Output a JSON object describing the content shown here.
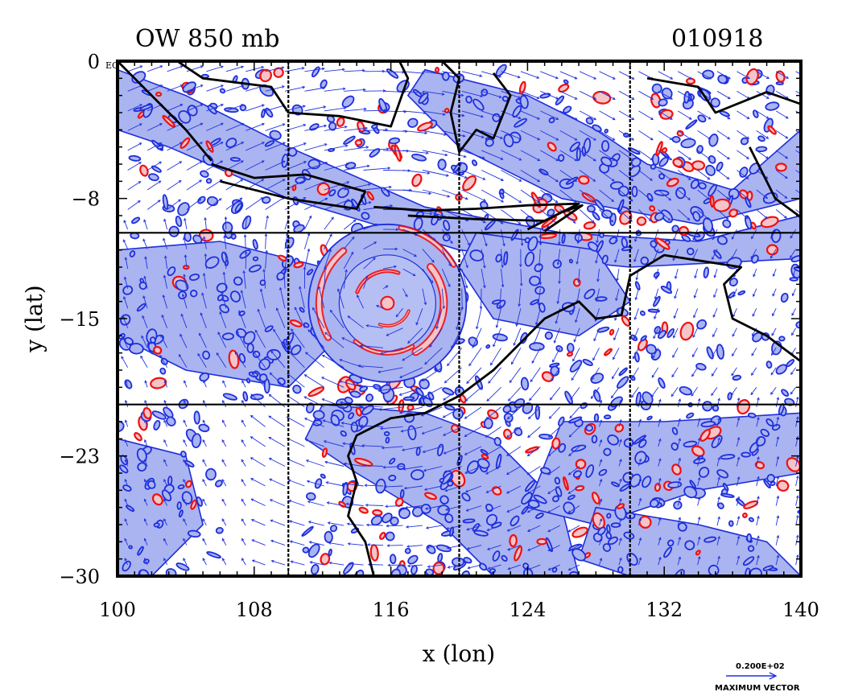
{
  "chart_data": {
    "type": "contour",
    "title": "OW 850 mb",
    "date_label": "010918",
    "xlabel": "x (lon)",
    "ylabel": "y (lat)",
    "xlim": [
      100,
      140
    ],
    "ylim": [
      -30,
      0
    ],
    "x_ticks": [
      100,
      108,
      116,
      124,
      132,
      140
    ],
    "y_ticks": [
      0,
      -8,
      -15,
      -23,
      -30
    ],
    "x_tick_labels": [
      "100",
      "108",
      "116",
      "124",
      "132",
      "140"
    ],
    "y_tick_labels": [
      "0",
      "−8",
      "−15",
      "−23",
      "−30"
    ],
    "equator_label": "EQ",
    "grid_lines": {
      "lon": [
        110,
        120,
        130
      ],
      "lat": [
        -10,
        -20
      ]
    },
    "grid": true,
    "vector_legend": {
      "value_label": "0.200E+02",
      "caption": "MAXIMUM VECTOR"
    },
    "cyclone_center": {
      "lon": 115.8,
      "lat": -14.1
    },
    "colors": {
      "negative_fill": "#aab4f0",
      "negative_line": "#1e2edc",
      "positive_fill": "#f4c4c8",
      "positive_line": "#ee1111",
      "vectors": "#2233dd",
      "coast": "#000000"
    }
  }
}
